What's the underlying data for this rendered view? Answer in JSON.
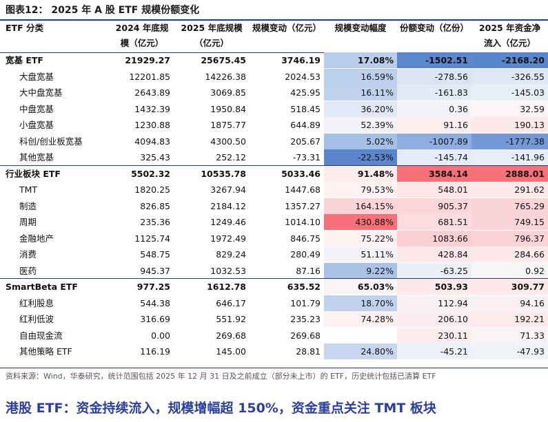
{
  "title": "图表12： 2025 年 A 股 ETF 规模份额变化",
  "header": {
    "col0": "ETF 分类",
    "col1a": "2024 年底规",
    "col1b": "模（亿元）",
    "col2a": "2025 年底规模",
    "col2b": "（亿元）",
    "col3a": "规模变动（亿元）",
    "col4a": "规模变动幅度",
    "col5a": "份额变动（亿份）",
    "col6a": "2025 年资金净",
    "col6b": "流入（亿元）"
  },
  "rows": [
    {
      "name": "宽基 ETF",
      "section": true,
      "v": [
        "21929.27",
        "25675.45",
        "3746.19",
        "17.08%",
        "-1502.51",
        "-2168.20"
      ],
      "bg": [
        "#b9cdea",
        "#5b87cc",
        "#5a86cc"
      ]
    },
    {
      "name": "大盘宽基",
      "section": false,
      "v": [
        "12201.85",
        "14226.38",
        "2024.53",
        "16.59%",
        "-278.56",
        "-326.55"
      ],
      "bg": [
        "#bccfeb",
        "#dbe5f4",
        "#dfe8f5"
      ]
    },
    {
      "name": "大中盘宽基",
      "section": false,
      "v": [
        "2643.89",
        "3069.85",
        "425.95",
        "16.11%",
        "-161.83",
        "-145.03"
      ],
      "bg": [
        "#bfd1ec",
        "#e4ebf7",
        "#e8eef8"
      ]
    },
    {
      "name": "中盘宽基",
      "section": false,
      "v": [
        "1432.39",
        "1950.84",
        "518.45",
        "36.20%",
        "0.36",
        "32.59"
      ],
      "bg": [
        "#e2e9f6",
        "#f2f4fa",
        "#fbf5f6"
      ]
    },
    {
      "name": "小盘宽基",
      "section": false,
      "v": [
        "1230.88",
        "1875.77",
        "644.89",
        "52.39%",
        "91.16",
        "190.13"
      ],
      "bg": [
        "#f5f2f7",
        "#fcedef",
        "#fde8ea"
      ]
    },
    {
      "name": "科创/创业板宽基",
      "section": false,
      "v": [
        "4094.83",
        "4300.50",
        "205.67",
        "5.02%",
        "-1007.89",
        "-1777.38"
      ],
      "bg": [
        "#a5bfe5",
        "#8eade0",
        "#7598d6"
      ]
    },
    {
      "name": "其他宽基",
      "section": false,
      "v": [
        "325.43",
        "252.12",
        "-73.31",
        "-22.53%",
        "-145.74",
        "-141.96"
      ],
      "bg": [
        "#5b86cc",
        "#e5ecf7",
        "#e8eef8"
      ]
    },
    {
      "name": "行业板块 ETF",
      "section": true,
      "v": [
        "5502.32",
        "10535.78",
        "5033.46",
        "91.48%",
        "3584.14",
        "2888.01"
      ],
      "bg": [
        "#fdecee",
        "#f6707a",
        "#f6707a"
      ]
    },
    {
      "name": "TMT",
      "section": false,
      "v": [
        "1820.25",
        "3267.94",
        "1447.68",
        "79.53%",
        "548.01",
        "291.62"
      ],
      "bg": [
        "#fdf1f2",
        "#fde6e8",
        "#fde8ea"
      ]
    },
    {
      "name": "制造",
      "section": false,
      "v": [
        "826.85",
        "2184.12",
        "1357.27",
        "164.15%",
        "905.37",
        "765.29"
      ],
      "bg": [
        "#fbd4d8",
        "#fbd7db",
        "#fbd4d8"
      ]
    },
    {
      "name": "周期",
      "section": false,
      "v": [
        "235.36",
        "1249.46",
        "1014.10",
        "430.88%",
        "681.51",
        "749.15"
      ],
      "bg": [
        "#f6707a",
        "#fddcdf",
        "#fbd4d8"
      ]
    },
    {
      "name": "金融地产",
      "section": false,
      "v": [
        "1125.74",
        "1972.49",
        "846.75",
        "75.22%",
        "1083.66",
        "796.37"
      ],
      "bg": [
        "#fdf1f2",
        "#fbd0d4",
        "#fbd3d7"
      ]
    },
    {
      "name": "消费",
      "section": false,
      "v": [
        "548.75",
        "829.24",
        "280.49",
        "51.11%",
        "428.84",
        "284.66"
      ],
      "bg": [
        "#f4f2f8",
        "#fde9eb",
        "#fde8ea"
      ]
    },
    {
      "name": "医药",
      "section": false,
      "v": [
        "945.37",
        "1032.53",
        "87.16",
        "9.22%",
        "-63.25",
        "0.92"
      ],
      "bg": [
        "#a9c2e6",
        "#eaeff8",
        "#f7f5f8"
      ]
    },
    {
      "name": "SmartBeta ETF",
      "section": true,
      "v": [
        "977.25",
        "1612.78",
        "635.52",
        "65.03%",
        "503.93",
        "309.77"
      ],
      "bg": [
        "#f9f3f5",
        "#fde8ea",
        "#fde8ea"
      ]
    },
    {
      "name": "红利股息",
      "section": false,
      "v": [
        "544.38",
        "646.17",
        "101.79",
        "18.70%",
        "112.94",
        "94.16"
      ],
      "bg": [
        "#bfd1ec",
        "#f9f0f2",
        "#f9f1f3"
      ]
    },
    {
      "name": "红利低波",
      "section": false,
      "v": [
        "316.69",
        "551.92",
        "235.23",
        "74.28%",
        "206.10",
        "192.21"
      ],
      "bg": [
        "#fdf1f2",
        "#fbedef",
        "#fceaec"
      ]
    },
    {
      "name": "自由现金流",
      "section": false,
      "v": [
        "0.00",
        "269.68",
        "269.68",
        "",
        "230.11",
        "71.33"
      ],
      "bg": [
        "#ffffff",
        "#fbeced",
        "#f9f3f5"
      ]
    },
    {
      "name": "其他策略 ETF",
      "section": false,
      "v": [
        "116.19",
        "145.00",
        "28.81",
        "24.80%",
        "-45.21",
        "-47.93"
      ],
      "bg": [
        "#c7d6ee",
        "#edf1f9",
        "#eef2f9"
      ]
    }
  ],
  "source": "资料来源：Wind，华泰研究，统计范围包括 2025 年 12 月 31 日及之前成立（部分未上市）的 ETF，历史统计包括已清算 ETF",
  "banner": "港股 ETF：资金持续流入，规模增幅超 150%，资金重点关注 TMT 板块"
}
